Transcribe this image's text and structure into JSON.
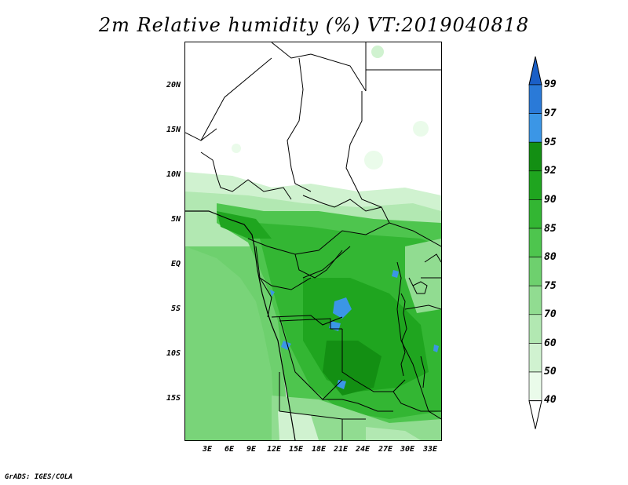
{
  "title": "2m Relative humidity (%) VT:2019040818",
  "credit": "GrADS: IGES/COLA",
  "map": {
    "y_tick_labels": [
      "20N",
      "15N",
      "10N",
      "5N",
      "EQ",
      "5S",
      "10S",
      "15S"
    ],
    "x_tick_labels": [
      "3E",
      "6E",
      "9E",
      "12E",
      "15E",
      "18E",
      "21E",
      "24E",
      "27E",
      "30E",
      "33E"
    ]
  },
  "colorbar": {
    "levels": [
      "99",
      "97",
      "95",
      "92",
      "90",
      "85",
      "80",
      "75",
      "70",
      "60",
      "50",
      "40"
    ],
    "colors": [
      "#1a5fc7",
      "#2a7ad8",
      "#3b96e6",
      "#138f13",
      "#1fa51f",
      "#33b633",
      "#4ec54e",
      "#6ed06e",
      "#91dc91",
      "#b2e8b2",
      "#d0f2d0",
      "#eafbea"
    ]
  }
}
